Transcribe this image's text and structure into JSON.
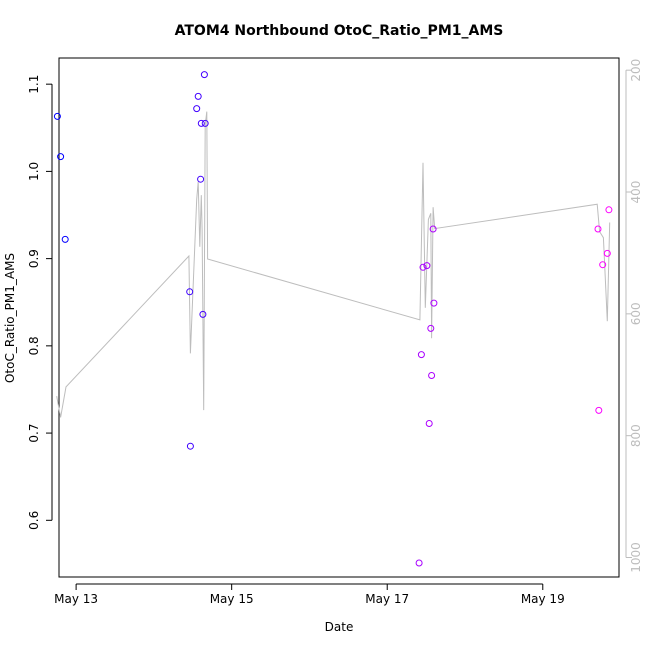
{
  "chart_data": {
    "type": "scatter",
    "title": "ATOM4 Northbound OtoC_Ratio_PM1_AMS",
    "xlabel": "Date",
    "ylabel": "OtoC_Ratio_PM1_AMS",
    "x_unit": "days (May 2019)",
    "xlim": [
      12.78,
      19.98
    ],
    "ylim": [
      0.535,
      1.13
    ],
    "x_ticks": [
      13,
      15,
      17,
      19
    ],
    "x_tick_labels": [
      "May 13",
      "May 15",
      "May 17",
      "May 19"
    ],
    "y_ticks": [
      0.6,
      0.7,
      0.8,
      0.9,
      1.0,
      1.1
    ],
    "y_tick_labels": [
      "0.6",
      "0.7",
      "0.8",
      "0.9",
      "1.0",
      "1.1"
    ],
    "y2_ticks": [
      200,
      400,
      600,
      800,
      1000
    ],
    "y2_tick_labels": [
      "200",
      "400",
      "600",
      "800",
      "1000"
    ],
    "y2_lim": [
      1032,
      180
    ],
    "grid": false,
    "point_color_start": "#0000ff",
    "point_color_end": "#ff00ff",
    "line_color": "#bdbdbd",
    "series": [
      {
        "kind": "points",
        "points": [
          {
            "x": 12.76,
            "y": 1.063
          },
          {
            "x": 12.8,
            "y": 1.017
          },
          {
            "x": 12.86,
            "y": 0.922
          },
          {
            "x": 14.46,
            "y": 0.862
          },
          {
            "x": 14.47,
            "y": 0.685
          },
          {
            "x": 14.55,
            "y": 1.072
          },
          {
            "x": 14.57,
            "y": 1.086
          },
          {
            "x": 14.6,
            "y": 0.991
          },
          {
            "x": 14.61,
            "y": 1.055
          },
          {
            "x": 14.63,
            "y": 0.836
          },
          {
            "x": 14.65,
            "y": 1.111
          },
          {
            "x": 14.66,
            "y": 1.055
          },
          {
            "x": 17.41,
            "y": 0.551
          },
          {
            "x": 17.44,
            "y": 0.79
          },
          {
            "x": 17.46,
            "y": 0.89
          },
          {
            "x": 17.51,
            "y": 0.892
          },
          {
            "x": 17.54,
            "y": 0.711
          },
          {
            "x": 17.56,
            "y": 0.82
          },
          {
            "x": 17.57,
            "y": 0.766
          },
          {
            "x": 17.59,
            "y": 0.934
          },
          {
            "x": 17.6,
            "y": 0.849
          },
          {
            "x": 19.71,
            "y": 0.934
          },
          {
            "x": 19.72,
            "y": 0.726
          },
          {
            "x": 19.77,
            "y": 0.893
          },
          {
            "x": 19.83,
            "y": 0.906
          },
          {
            "x": 19.85,
            "y": 0.956
          }
        ]
      },
      {
        "kind": "line",
        "axis": "right",
        "points": [
          {
            "x": 12.75,
            "y": 735
          },
          {
            "x": 12.8,
            "y": 770
          },
          {
            "x": 12.87,
            "y": 720
          },
          {
            "x": 14.45,
            "y": 505
          },
          {
            "x": 14.47,
            "y": 665
          },
          {
            "x": 14.55,
            "y": 412
          },
          {
            "x": 14.57,
            "y": 383
          },
          {
            "x": 14.59,
            "y": 490
          },
          {
            "x": 14.61,
            "y": 405
          },
          {
            "x": 14.62,
            "y": 460
          },
          {
            "x": 14.64,
            "y": 758
          },
          {
            "x": 14.66,
            "y": 290
          },
          {
            "x": 14.68,
            "y": 268
          },
          {
            "x": 14.69,
            "y": 510
          },
          {
            "x": 17.42,
            "y": 610
          },
          {
            "x": 17.46,
            "y": 352
          },
          {
            "x": 17.49,
            "y": 590
          },
          {
            "x": 17.53,
            "y": 445
          },
          {
            "x": 17.56,
            "y": 435
          },
          {
            "x": 17.57,
            "y": 640
          },
          {
            "x": 17.59,
            "y": 425
          },
          {
            "x": 17.61,
            "y": 460
          },
          {
            "x": 19.7,
            "y": 420
          },
          {
            "x": 19.73,
            "y": 465
          },
          {
            "x": 19.78,
            "y": 475
          },
          {
            "x": 19.83,
            "y": 612
          },
          {
            "x": 19.86,
            "y": 450
          }
        ]
      }
    ]
  }
}
